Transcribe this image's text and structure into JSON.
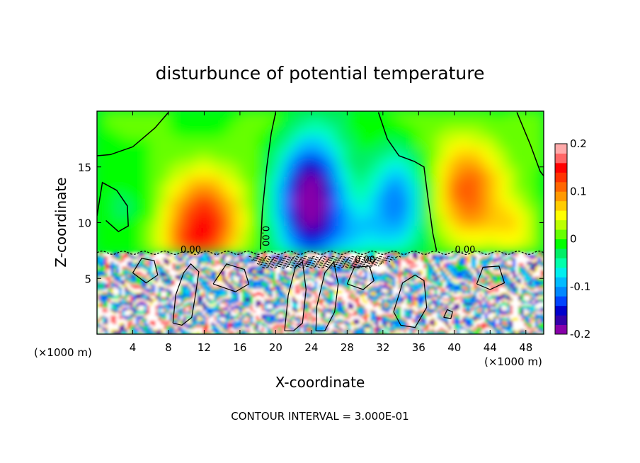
{
  "chart_data": {
    "type": "heatmap",
    "title": "disturbunce of potential temperature",
    "xlabel": "X-coordinate",
    "ylabel": "Z-coordinate",
    "x_unit_left": "(×1000 m)",
    "x_unit_right": "(×1000 m)",
    "footer": "CONTOUR INTERVAL = 3.000E-01",
    "xlim": [
      0,
      50
    ],
    "ylim": [
      0,
      20
    ],
    "x_ticks": [
      4,
      8,
      12,
      16,
      20,
      24,
      28,
      32,
      36,
      40,
      44,
      48
    ],
    "y_ticks": [
      5,
      10,
      15
    ],
    "colorbar": {
      "range": [
        -0.2,
        0.2
      ],
      "tick_values": [
        0.2,
        0.1,
        0,
        -0.1,
        -0.2
      ],
      "tick_labels": [
        "0.2",
        "0.1",
        "0",
        "-0.1",
        "-0.2"
      ],
      "colors": [
        "#8800aa",
        "#3300aa",
        "#0000cc",
        "#0044ff",
        "#0088ff",
        "#00bbff",
        "#00eeee",
        "#00ffaa",
        "#00ee66",
        "#00ff00",
        "#66ff00",
        "#bbff00",
        "#ffff00",
        "#ffcc00",
        "#ff9900",
        "#ff6600",
        "#ff3300",
        "#ff0000",
        "#ff6666",
        "#ffaaaa"
      ]
    },
    "contour_labels": [
      {
        "text": "0.00",
        "x": 10.5,
        "z": 7.3
      },
      {
        "text": "0.00",
        "x": 18.5,
        "z": 8.8,
        "rotate": 90
      },
      {
        "text": "0.00",
        "x": 30.0,
        "z": 6.4
      },
      {
        "text": "0.00",
        "x": 41.2,
        "z": 7.3
      }
    ]
  }
}
